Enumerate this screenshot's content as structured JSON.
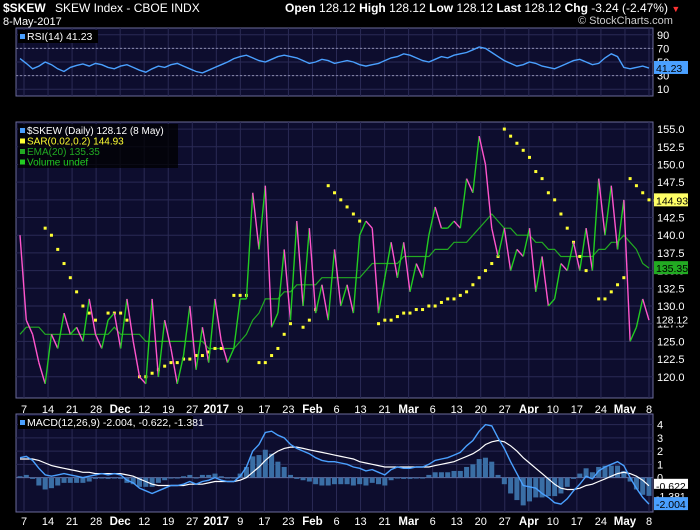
{
  "header": {
    "symbol": "$SKEW",
    "name": "SKEW Index - CBOE INDX",
    "date": "8-May-2017",
    "copyright": "© StockCharts.com",
    "open_label": "Open",
    "open": "128.12",
    "high_label": "High",
    "high": "128.12",
    "low_label": "Low",
    "low": "128.12",
    "last_label": "Last",
    "last": "128.12",
    "chg_label": "Chg",
    "chg": "-3.24 (-2.47%)"
  },
  "colors": {
    "background": "#000000",
    "panel_bg": "#0d0d2e",
    "grid": "#2a2a55",
    "price_up": "#22cc22",
    "price_down": "#ff55cc",
    "sar": "#ffff33",
    "ema": "#22aa22",
    "rsi": "#4aa0ff",
    "macd": "#4aa0ff",
    "signal": "#ffffff",
    "histogram": "#3a6ea5"
  },
  "chart_data": [
    {
      "type": "line",
      "panel": "rsi",
      "legend": "RSI(14) 41.23",
      "ylim": [
        0,
        100
      ],
      "yticks": [
        "90",
        "70",
        "50",
        "30",
        "10"
      ],
      "last_value_label": "41.23",
      "series": [
        {
          "name": "RSI(14)",
          "values": [
            55,
            48,
            40,
            44,
            50,
            46,
            40,
            36,
            42,
            45,
            47,
            44,
            48,
            46,
            42,
            40,
            44,
            46,
            42,
            38,
            35,
            40,
            44,
            42,
            46,
            48,
            44,
            40,
            36,
            34,
            38,
            42,
            46,
            50,
            55,
            58,
            60,
            56,
            52,
            50,
            54,
            58,
            60,
            58,
            56,
            52,
            48,
            50,
            54,
            52,
            48,
            50,
            52,
            50,
            46,
            44,
            46,
            48,
            52,
            56,
            58,
            62,
            60,
            56,
            52,
            50,
            54,
            58,
            56,
            60,
            62,
            64,
            68,
            72,
            70,
            64,
            58,
            52,
            48,
            44,
            46,
            50,
            48,
            44,
            42,
            40,
            44,
            48,
            52,
            54,
            50,
            46,
            48,
            56,
            62,
            58,
            42,
            40,
            42,
            44,
            41
          ]
        }
      ]
    },
    {
      "type": "line",
      "panel": "price",
      "legend": [
        "$SKEW (Daily) 128.12 (8 May)",
        "SAR(0.02,0.2) 144.93",
        "EMA(20) 135.35",
        "Volume undef"
      ],
      "ylim": [
        117,
        156
      ],
      "yticks": [
        "155.0",
        "152.5",
        "150.0",
        "147.5",
        "145.0",
        "142.5",
        "140.0",
        "137.5",
        "135.0",
        "132.5",
        "130.0",
        "127.5",
        "125.0",
        "122.5",
        "120.0"
      ],
      "last_labels": {
        "sar": "144.93",
        "ema": "135.35",
        "price": "128.12"
      },
      "series": [
        {
          "name": "$SKEW",
          "values": [
            140,
            128,
            126,
            122,
            119,
            126,
            124,
            129,
            126,
            127,
            125,
            131,
            126,
            124,
            128,
            129,
            124,
            131,
            125,
            120,
            119,
            131,
            120,
            128,
            124,
            119,
            123,
            130,
            121,
            127,
            122,
            131,
            125,
            122,
            124,
            131,
            131,
            146,
            138,
            147,
            127,
            129,
            138,
            128,
            142,
            130,
            141,
            129,
            133,
            128,
            138,
            130,
            133,
            129,
            140,
            142,
            141,
            129,
            134,
            139,
            134,
            139,
            132,
            136,
            134,
            140,
            144,
            141,
            141,
            142,
            141,
            148,
            146,
            154,
            150,
            141,
            137,
            141,
            135,
            138,
            137,
            141,
            132,
            137,
            130,
            131,
            136,
            135,
            139,
            135,
            141,
            135,
            148,
            140,
            147,
            138,
            145,
            125,
            127,
            131,
            128
          ]
        },
        {
          "name": "SAR",
          "values": [
            null,
            null,
            null,
            null,
            141,
            140,
            138,
            136,
            134,
            132,
            130,
            129,
            128,
            null,
            129,
            129,
            129,
            128,
            null,
            120,
            120,
            120.5,
            121,
            121.5,
            122,
            122,
            122.5,
            122.5,
            123,
            123,
            123.5,
            124,
            124,
            null,
            131.5,
            131.5,
            131.5,
            null,
            122,
            122,
            123,
            124,
            126,
            127.5,
            null,
            127,
            128,
            129.5,
            null,
            147,
            146,
            145,
            144,
            143,
            142,
            null,
            null,
            127.5,
            128,
            128,
            128.5,
            129,
            129,
            129.5,
            129.5,
            130,
            130,
            130.5,
            131,
            131,
            131.5,
            132,
            133,
            134,
            135,
            136,
            137,
            155,
            154,
            153,
            152,
            151,
            149,
            148,
            146,
            145,
            143,
            141,
            139,
            137,
            135,
            null,
            131,
            131,
            132,
            133,
            134,
            148,
            147,
            146,
            145,
            144.93
          ]
        },
        {
          "name": "EMA(20)",
          "values": [
            126,
            127,
            127,
            127,
            126,
            126,
            126,
            126,
            126,
            126,
            126,
            126,
            126,
            126,
            126,
            127,
            126,
            126,
            126,
            126,
            125,
            125,
            125,
            125,
            125,
            125,
            125,
            125,
            125,
            125,
            124,
            124,
            124,
            124,
            124,
            125,
            126,
            128,
            129,
            131,
            131,
            131,
            132,
            132,
            133,
            133,
            133,
            133,
            134,
            134,
            134,
            134,
            134,
            134,
            134,
            135,
            136,
            136,
            136,
            136,
            136,
            137,
            137,
            137,
            137,
            137,
            138,
            138,
            138,
            139,
            139,
            139,
            140,
            141,
            142,
            143,
            142,
            141,
            141,
            140,
            140,
            140,
            139,
            139,
            138,
            138,
            137,
            137,
            137,
            137,
            137,
            137,
            138,
            138,
            139,
            139,
            140,
            139,
            138,
            136,
            135.35
          ]
        }
      ]
    },
    {
      "type": "line",
      "panel": "macd",
      "legend": "MACD(12,26,9) -2.004, -0.622, -1.381",
      "ylim": [
        -2.6,
        4.8
      ],
      "yticks": [
        "4",
        "3",
        "2",
        "1",
        "0"
      ],
      "last_labels": {
        "signal": "-0.622",
        "histogram": "-1.381",
        "macd": "-2.004"
      },
      "series": [
        {
          "name": "MACD",
          "values": [
            1.5,
            1.6,
            1.3,
            0.7,
            0.2,
            0.1,
            0.2,
            0.3,
            0.2,
            0.1,
            0.0,
            0.1,
            0.2,
            0.3,
            0.2,
            0.3,
            0.2,
            -0.2,
            -0.4,
            -0.8,
            -1.0,
            -1.2,
            -1.0,
            -0.8,
            -0.6,
            -0.6,
            -0.5,
            -0.3,
            -0.5,
            -0.3,
            -0.2,
            0.0,
            -0.2,
            -0.3,
            -0.3,
            0.1,
            0.8,
            2.0,
            2.5,
            3.4,
            3.5,
            3.2,
            3.0,
            2.5,
            2.2,
            2.0,
            1.8,
            1.5,
            1.3,
            1.2,
            1.2,
            1.1,
            1.0,
            0.8,
            0.7,
            0.5,
            0.6,
            0.4,
            0.2,
            0.6,
            0.8,
            0.7,
            0.7,
            0.8,
            0.8,
            1.0,
            1.3,
            1.4,
            1.5,
            1.7,
            1.9,
            2.4,
            2.8,
            3.5,
            4.0,
            3.9,
            3.0,
            2.2,
            1.2,
            0.3,
            -0.6,
            -0.7,
            -0.8,
            -1.2,
            -1.5,
            -1.9,
            -2.0,
            -1.6,
            -1.0,
            -0.5,
            0.1,
            -0.1,
            0.5,
            0.8,
            1.0,
            1.2,
            0.9,
            0.0,
            -0.8,
            -1.5,
            -2.004
          ]
        },
        {
          "name": "Signal",
          "values": [
            1.4,
            1.4,
            1.4,
            1.3,
            1.1,
            0.9,
            0.8,
            0.7,
            0.6,
            0.5,
            0.4,
            0.4,
            0.3,
            0.3,
            0.3,
            0.3,
            0.3,
            0.2,
            0.1,
            -0.1,
            -0.3,
            -0.5,
            -0.6,
            -0.6,
            -0.6,
            -0.6,
            -0.6,
            -0.5,
            -0.5,
            -0.5,
            -0.4,
            -0.3,
            -0.3,
            -0.3,
            -0.3,
            -0.2,
            0.0,
            0.4,
            0.8,
            1.3,
            1.7,
            2.0,
            2.2,
            2.3,
            2.3,
            2.2,
            2.1,
            2.0,
            1.9,
            1.8,
            1.7,
            1.6,
            1.5,
            1.4,
            1.2,
            1.1,
            1.0,
            0.9,
            0.8,
            0.8,
            0.8,
            0.8,
            0.8,
            0.8,
            0.8,
            0.8,
            0.9,
            1.0,
            1.1,
            1.2,
            1.4,
            1.6,
            1.8,
            2.1,
            2.5,
            2.7,
            2.8,
            2.7,
            2.4,
            2.0,
            1.5,
            1.1,
            0.7,
            0.3,
            -0.1,
            -0.5,
            -0.8,
            -0.9,
            -0.9,
            -0.8,
            -0.6,
            -0.5,
            -0.3,
            -0.1,
            0.1,
            0.3,
            0.4,
            0.3,
            0.1,
            -0.2,
            -0.622
          ]
        }
      ]
    }
  ],
  "x_axis_labels": [
    "7",
    "14",
    "21",
    "28",
    "Dec",
    "12",
    "19",
    "27",
    "2017",
    "9",
    "17",
    "23",
    "Feb",
    "6",
    "13",
    "21",
    "Mar",
    "6",
    "13",
    "20",
    "27",
    "Apr",
    "10",
    "17",
    "24",
    "May",
    "8"
  ]
}
